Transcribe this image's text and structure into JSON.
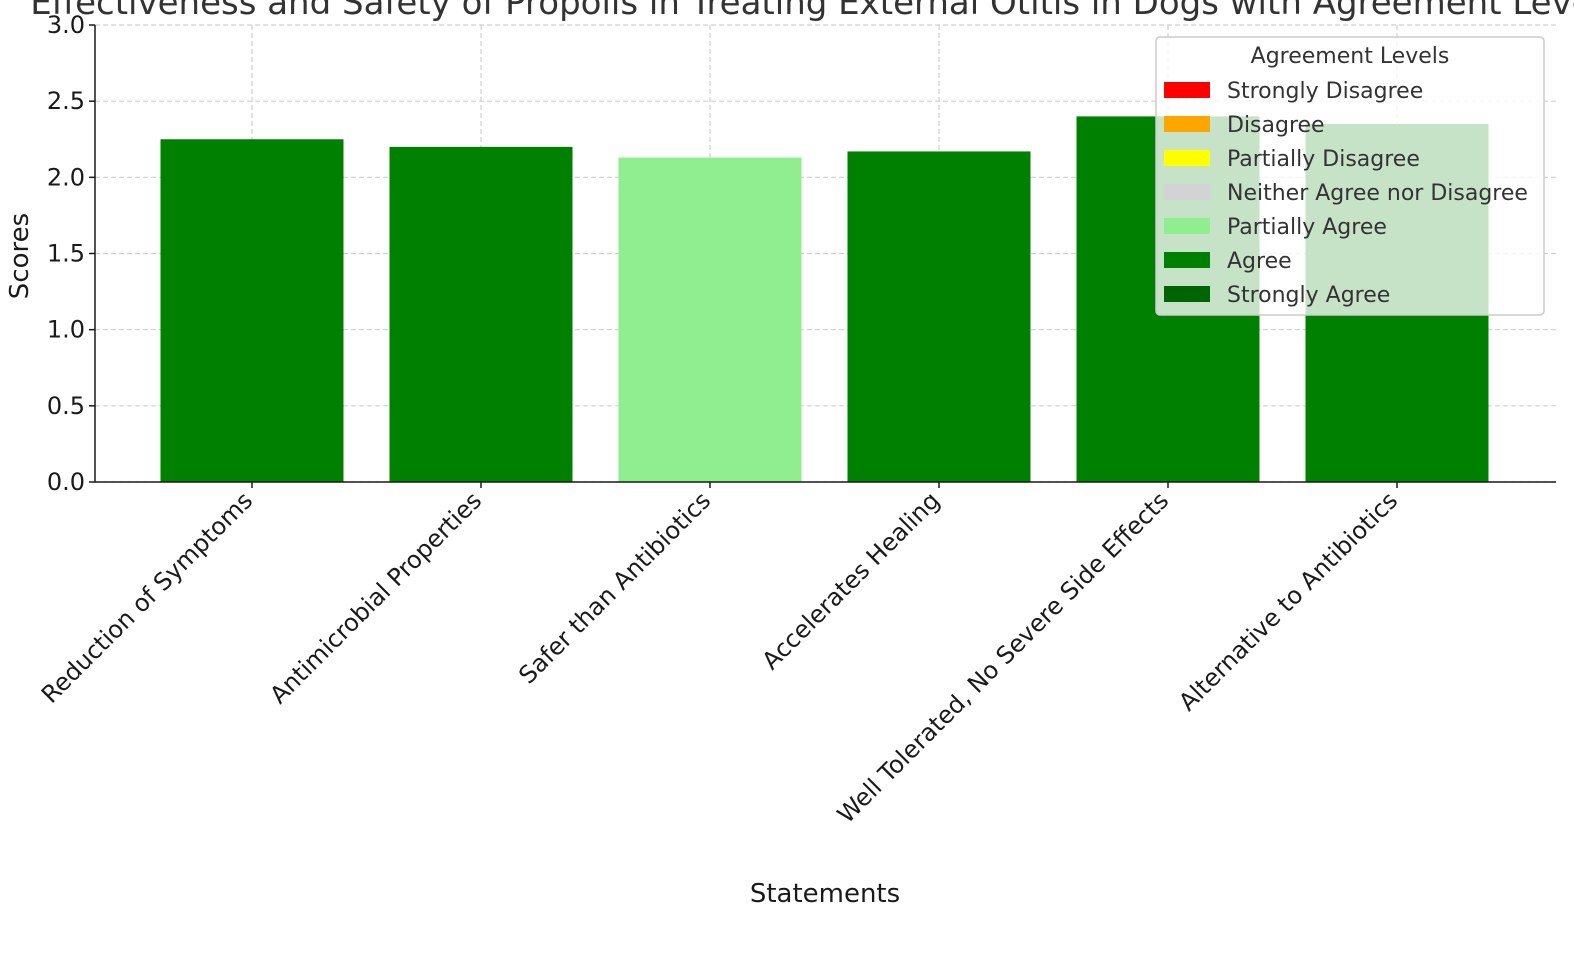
{
  "chart_data": {
    "type": "bar",
    "title": "Effectiveness and Safety of Propolis in Treating External Otitis in Dogs with Agreement Levels",
    "xlabel": "Statements",
    "ylabel": "Scores",
    "ylim": [
      0,
      3.0
    ],
    "yticks": [
      0.0,
      0.5,
      1.0,
      1.5,
      2.0,
      2.5,
      3.0
    ],
    "ytick_labels": [
      "0.0",
      "0.5",
      "1.0",
      "1.5",
      "2.0",
      "2.5",
      "3.0"
    ],
    "grid": true,
    "categories": [
      "Reduction of Symptoms",
      "Antimicrobial Properties",
      "Safer than Antibiotics",
      "Accelerates Healing",
      "Well Tolerated, No Severe Side Effects",
      "Alternative to Antibiotics"
    ],
    "values": [
      2.25,
      2.2,
      2.13,
      2.17,
      2.4,
      2.35
    ],
    "bar_levels": [
      "Agree",
      "Agree",
      "Partially Agree",
      "Agree",
      "Agree",
      "Agree"
    ],
    "legend": {
      "title": "Agreement Levels",
      "placement": "top-right",
      "entries": [
        {
          "label": "Strongly Disagree",
          "color": "#ff0000"
        },
        {
          "label": "Disagree",
          "color": "#ffa500"
        },
        {
          "label": "Partially Disagree",
          "color": "#ffff00"
        },
        {
          "label": "Neither Agree nor Disagree",
          "color": "#d3d3d3"
        },
        {
          "label": "Partially Agree",
          "color": "#90ee90"
        },
        {
          "label": "Agree",
          "color": "#008000"
        },
        {
          "label": "Strongly Agree",
          "color": "#006400"
        }
      ]
    }
  }
}
